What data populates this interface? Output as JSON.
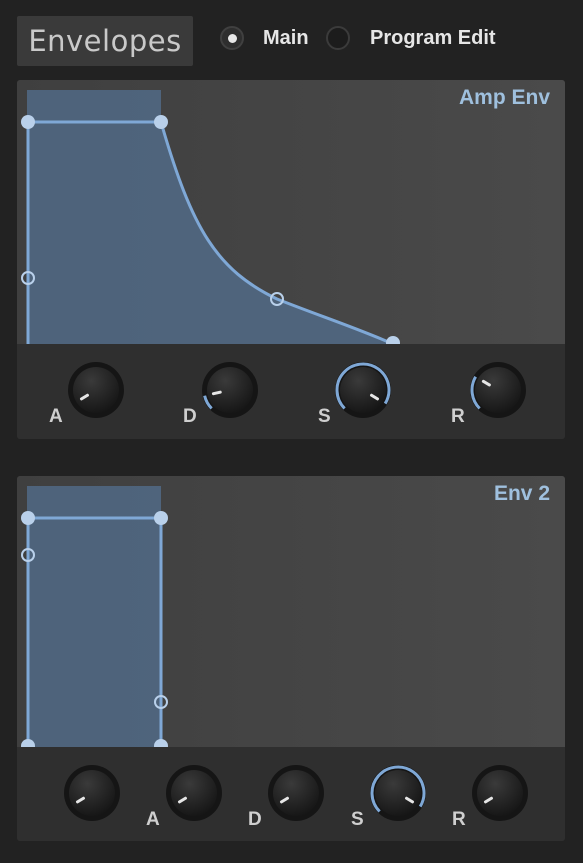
{
  "header": {
    "title": "Envelopes",
    "views": [
      {
        "label": "Main",
        "selected": true
      },
      {
        "label": "Program Edit",
        "selected": false
      }
    ]
  },
  "envelopes": [
    {
      "name": "Amp Env",
      "knobs": [
        {
          "label": "A",
          "value": 0.05
        },
        {
          "label": "D",
          "value": 0.12
        },
        {
          "label": "S",
          "value": 0.95
        },
        {
          "label": "R",
          "value": 0.28
        }
      ]
    },
    {
      "name": "Env 2",
      "knobs": [
        {
          "label": "",
          "value": 0.05
        },
        {
          "label": "A",
          "value": 0.05
        },
        {
          "label": "D",
          "value": 0.05
        },
        {
          "label": "S",
          "value": 0.95
        },
        {
          "label": "R",
          "value": 0.05
        }
      ]
    }
  ],
  "colors": {
    "accent": "#7fa8d6",
    "fill": "#516a86",
    "point": "#b9d0ea",
    "graph_bg": "#444444"
  }
}
